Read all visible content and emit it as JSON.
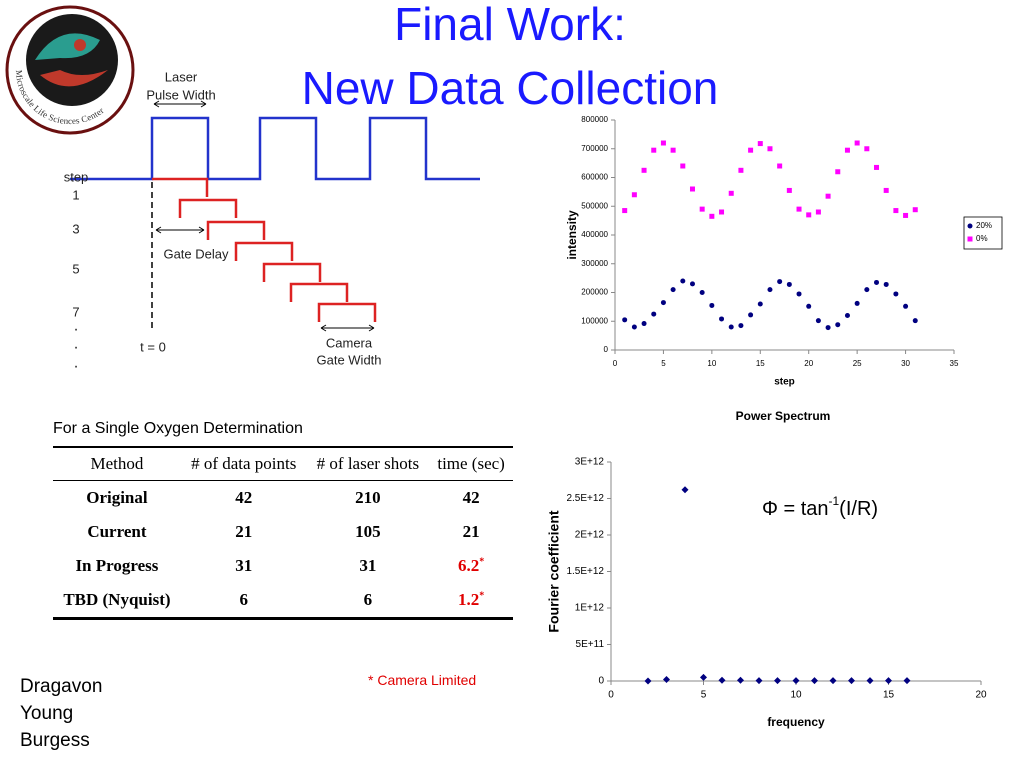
{
  "title": [
    "Final Work:",
    "New Data Collection"
  ],
  "logo": {
    "text": "Microscale Life Sciences Center"
  },
  "diagram": {
    "laser_label": [
      "Laser",
      "Pulse Width"
    ],
    "step_label": "step",
    "steps": [
      "1",
      "3",
      "5",
      "7"
    ],
    "dots": [
      "·",
      "·",
      "·"
    ],
    "gate_delay": "Gate Delay",
    "t0": "t = 0",
    "camera_label": [
      "Camera",
      "Gate Width"
    ]
  },
  "table": {
    "caption": "For a Single Oxygen Determination",
    "headers": [
      "Method",
      "# of data points",
      "# of laser shots",
      "time (sec)"
    ],
    "rows": [
      [
        "Original",
        "42",
        "210",
        "42"
      ],
      [
        "Current",
        "21",
        "105",
        "21"
      ],
      [
        "In Progress",
        "31",
        "31",
        {
          "text": "6.2",
          "sup": "*"
        }
      ],
      [
        "TBD (Nyquist)",
        "6",
        "6",
        {
          "text": "1.2",
          "sup": "*"
        }
      ]
    ],
    "footnote": "* Camera Limited"
  },
  "authors": [
    "Dragavon",
    "Young",
    "Burgess"
  ],
  "formula": {
    "before": "Φ = tan",
    "sup": "-1",
    "after": "(I/R)"
  },
  "chart_data": [
    {
      "type": "scatter",
      "x_label": "step",
      "y_label": "intensity",
      "x": [
        1,
        2,
        3,
        4,
        5,
        6,
        7,
        8,
        9,
        10,
        11,
        12,
        13,
        14,
        15,
        16,
        17,
        18,
        19,
        20,
        21,
        22,
        23,
        24,
        25,
        26,
        27,
        28,
        29,
        30,
        31
      ],
      "series": [
        {
          "name": "20%",
          "color": "#000080",
          "marker": "circle",
          "values": [
            105000,
            80000,
            92000,
            125000,
            165000,
            210000,
            240000,
            230000,
            200000,
            155000,
            108000,
            80000,
            85000,
            122000,
            160000,
            210000,
            238000,
            228000,
            195000,
            152000,
            102000,
            78000,
            88000,
            120000,
            162000,
            210000,
            235000,
            228000,
            195000,
            152000,
            102000
          ]
        },
        {
          "name": "0%",
          "color": "#ff00ff",
          "marker": "square",
          "values": [
            485000,
            540000,
            625000,
            695000,
            720000,
            695000,
            640000,
            560000,
            490000,
            465000,
            480000,
            545000,
            625000,
            695000,
            718000,
            700000,
            640000,
            555000,
            490000,
            470000,
            480000,
            535000,
            620000,
            695000,
            720000,
            700000,
            635000,
            555000,
            485000,
            468000,
            488000
          ]
        }
      ],
      "xlim": [
        0,
        35
      ],
      "xticks": [
        0,
        5,
        10,
        15,
        20,
        25,
        30,
        35
      ],
      "ylim": [
        0,
        800000
      ],
      "yticks": [
        0,
        100000,
        200000,
        300000,
        400000,
        500000,
        600000,
        700000,
        800000
      ],
      "legend": "right"
    },
    {
      "type": "scatter",
      "title": "Power Spectrum",
      "x_label": "frequency",
      "y_label": "Fourier coefficient",
      "x": [
        2,
        3,
        4,
        5,
        6,
        7,
        8,
        9,
        10,
        11,
        12,
        13,
        14,
        15,
        16
      ],
      "values": [
        0,
        20000000000,
        2620000000000,
        50000000000,
        10000000000,
        10000000000,
        5000000000,
        5000000000,
        5000000000,
        5000000000,
        5000000000,
        5000000000,
        5000000000,
        5000000000,
        5000000000
      ],
      "color": "#000080",
      "marker": "diamond",
      "xlim": [
        0,
        20
      ],
      "xticks": [
        0,
        5,
        10,
        15,
        20
      ],
      "ylim": [
        0,
        3000000000000
      ],
      "yticks": [
        0,
        {
          "value": 500000000000,
          "label": "5E+11"
        },
        {
          "value": 1000000000000,
          "label": "1E+12"
        },
        {
          "value": 1500000000000,
          "label": "1.5E+12"
        },
        {
          "value": 2000000000000,
          "label": "2E+12"
        },
        {
          "value": 2500000000000,
          "label": "2.5E+12"
        },
        {
          "value": 3000000000000,
          "label": "3E+12"
        }
      ]
    }
  ]
}
